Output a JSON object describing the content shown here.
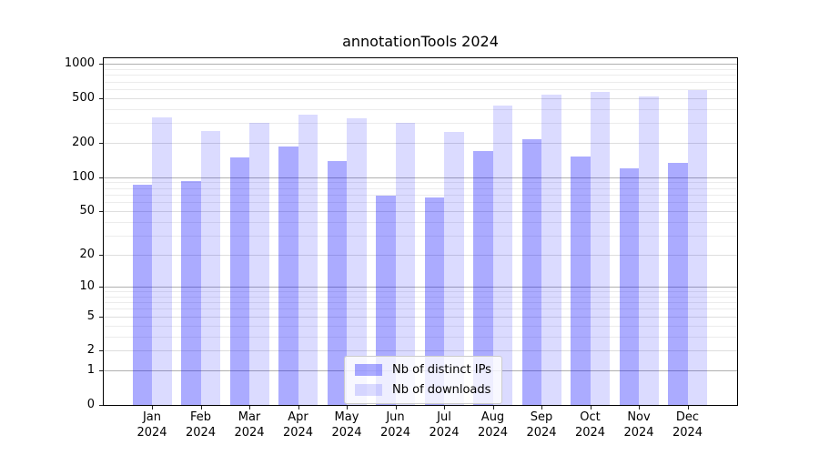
{
  "title": "annotationTools 2024",
  "legend": [
    {
      "label": "Nb of distinct IPs",
      "swatch": "dark"
    },
    {
      "label": "Nb of downloads",
      "swatch": "light"
    }
  ],
  "colors": {
    "bar_base": "#0000ff",
    "bar_dark_alpha": 0.33,
    "bar_light_alpha": 0.14,
    "bar_dark_rgba": "rgba(0,0,255,0.33)",
    "bar_light_rgba": "rgba(0,0,255,0.14)",
    "grid_major": "#b0b0b0",
    "grid_mid": "#dedede",
    "grid_minor": "#ececec",
    "spine": "#000000"
  },
  "chart_data": {
    "type": "bar",
    "title": "annotationTools 2024",
    "categories": [
      "Jan 2024",
      "Feb 2024",
      "Mar 2024",
      "Apr 2024",
      "May 2024",
      "Jun 2024",
      "Jul 2024",
      "Aug 2024",
      "Sep 2024",
      "Oct 2024",
      "Nov 2024",
      "Dec 2024"
    ],
    "series": [
      {
        "name": "Nb of distinct IPs",
        "values": [
          85,
          92,
          150,
          186,
          138,
          68,
          66,
          170,
          216,
          153,
          119,
          133
        ]
      },
      {
        "name": "Nb of downloads",
        "values": [
          337,
          258,
          300,
          355,
          330,
          305,
          250,
          434,
          535,
          570,
          519,
          590
        ]
      }
    ],
    "yscale": "log10(1+v)",
    "yticks": [
      0,
      1,
      2,
      5,
      10,
      20,
      50,
      100,
      200,
      500,
      1000
    ],
    "ylim": [
      0,
      1150
    ],
    "grid": "major and minor, horizontal only",
    "legend_position": "lower center"
  }
}
